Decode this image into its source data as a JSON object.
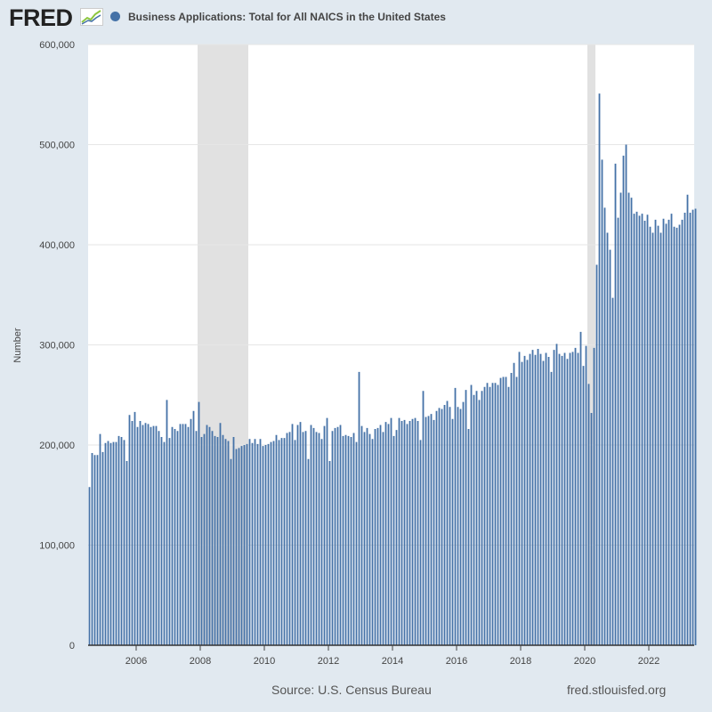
{
  "header": {
    "logo_text": "FRED",
    "logo_graph_icon": "line-graph-icon",
    "title": "Business Applications: Total for All NAICS in the United States"
  },
  "footer": {
    "source": "Source: U.S. Census Bureau",
    "site": "fred.stlouisfed.org"
  },
  "colors": {
    "background": "#e1e9f0",
    "plot": "#ffffff",
    "series": "#4572a7",
    "recession": "#e1e1e1",
    "grid": "#e6e6e6",
    "logo_accent": "#8dc63f"
  },
  "chart_data": {
    "type": "bar",
    "title": "Business Applications: Total for All NAICS in the United States",
    "xlabel": "",
    "ylabel": "Number",
    "ylim": [
      0,
      600000
    ],
    "yticks": [
      0,
      100000,
      200000,
      300000,
      400000,
      500000,
      600000
    ],
    "ytick_labels": [
      "0",
      "100,000",
      "200,000",
      "300,000",
      "400,000",
      "500,000",
      "600,000"
    ],
    "xlim": [
      "2004-07",
      "2023-05"
    ],
    "xticks": [
      "2006",
      "2008",
      "2010",
      "2012",
      "2014",
      "2016",
      "2018",
      "2020",
      "2022"
    ],
    "grid": true,
    "legend": "top-left",
    "recessions": [
      {
        "start": "2007-12",
        "end": "2009-06"
      },
      {
        "start": "2020-02",
        "end": "2020-04"
      }
    ],
    "series": [
      {
        "name": "Business Applications: Total for All NAICS in the United States",
        "start": "2004-07",
        "frequency": "monthly",
        "values": [
          158000,
          192000,
          190000,
          190000,
          211000,
          193000,
          202000,
          204000,
          202000,
          203000,
          203000,
          209000,
          208000,
          205000,
          184000,
          230000,
          224000,
          233000,
          218000,
          224000,
          220000,
          222000,
          221000,
          218000,
          219000,
          219000,
          214000,
          208000,
          203000,
          245000,
          207000,
          218000,
          216000,
          214000,
          221000,
          221000,
          221000,
          218000,
          226000,
          234000,
          214000,
          243000,
          208000,
          211000,
          220000,
          218000,
          214000,
          209000,
          208000,
          222000,
          210000,
          206000,
          204000,
          186000,
          208000,
          196000,
          197000,
          199000,
          200000,
          201000,
          206000,
          202000,
          206000,
          201000,
          206000,
          199000,
          200000,
          201000,
          203000,
          204000,
          210000,
          205000,
          207000,
          207000,
          212000,
          213000,
          221000,
          205000,
          220000,
          223000,
          213000,
          214000,
          186000,
          220000,
          217000,
          213000,
          212000,
          206000,
          219000,
          227000,
          184000,
          214000,
          217000,
          218000,
          220000,
          209000,
          210000,
          209000,
          208000,
          212000,
          203000,
          273000,
          219000,
          213000,
          217000,
          211000,
          206000,
          216000,
          217000,
          220000,
          213000,
          223000,
          221000,
          227000,
          209000,
          215000,
          227000,
          224000,
          225000,
          221000,
          224000,
          226000,
          227000,
          224000,
          205000,
          254000,
          228000,
          229000,
          231000,
          225000,
          234000,
          237000,
          236000,
          240000,
          244000,
          238000,
          226000,
          257000,
          238000,
          236000,
          243000,
          255000,
          216000,
          260000,
          250000,
          254000,
          245000,
          254000,
          258000,
          262000,
          258000,
          262000,
          262000,
          260000,
          267000,
          268000,
          268000,
          258000,
          272000,
          282000,
          268000,
          293000,
          283000,
          289000,
          285000,
          291000,
          295000,
          290000,
          296000,
          291000,
          284000,
          292000,
          288000,
          273000,
          295000,
          301000,
          291000,
          289000,
          292000,
          286000,
          292000,
          293000,
          297000,
          292000,
          313000,
          279000,
          299000,
          261000,
          232000,
          297000,
          380000,
          551000,
          485000,
          437000,
          412000,
          395000,
          347000,
          481000,
          427000,
          452000,
          489000,
          500000,
          452000,
          447000,
          431000,
          433000,
          429000,
          431000,
          424000,
          430000,
          418000,
          412000,
          425000,
          419000,
          412000,
          426000,
          421000,
          425000,
          431000,
          418000,
          417000,
          420000,
          425000,
          432000,
          450000,
          432000,
          435000,
          436000
        ]
      }
    ]
  }
}
